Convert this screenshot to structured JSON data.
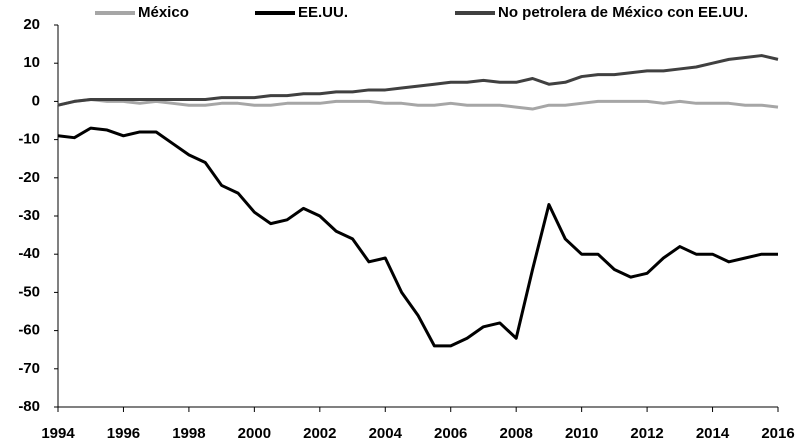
{
  "chart_data": {
    "type": "line",
    "x": [
      1994,
      1994.5,
      1995,
      1995.5,
      1996,
      1996.5,
      1997,
      1997.5,
      1998,
      1998.5,
      1999,
      1999.5,
      2000,
      2000.5,
      2001,
      2001.5,
      2002,
      2002.5,
      2003,
      2003.5,
      2004,
      2004.5,
      2005,
      2005.5,
      2006,
      2006.5,
      2007,
      2007.5,
      2008,
      2008.5,
      2009,
      2009.5,
      2010,
      2010.5,
      2011,
      2011.5,
      2012,
      2012.5,
      2013,
      2013.5,
      2014,
      2014.5,
      2015,
      2015.5,
      2016
    ],
    "series": [
      {
        "name": "México",
        "color": "#a6a6a6",
        "values": [
          -1,
          0,
          0.5,
          0,
          0,
          -0.5,
          0,
          -0.5,
          -1,
          -1,
          -0.5,
          -0.5,
          -1,
          -1,
          -0.5,
          -0.5,
          -0.5,
          0,
          0,
          0,
          -0.5,
          -0.5,
          -1,
          -1,
          -0.5,
          -1,
          -1,
          -1,
          -1.5,
          -2,
          -1,
          -1,
          -0.5,
          0,
          0,
          0,
          0,
          -0.5,
          0,
          -0.5,
          -0.5,
          -0.5,
          -1,
          -1,
          -1.5
        ]
      },
      {
        "name": "EE.UU.",
        "color": "#000000",
        "values": [
          -9,
          -9.5,
          -7,
          -7.5,
          -9,
          -8,
          -8,
          -11,
          -14,
          -16,
          -22,
          -24,
          -29,
          -32,
          -31,
          -28,
          -30,
          -34,
          -36,
          -42,
          -41,
          -50,
          -56,
          -64,
          -64,
          -62,
          -59,
          -58,
          -62,
          -44,
          -27,
          -36,
          -40,
          -40,
          -44,
          -46,
          -45,
          -41,
          -38,
          -40,
          -40,
          -42,
          -41,
          -40,
          -40
        ]
      },
      {
        "name": "No petrolera de México con EE.UU.",
        "color": "#404040",
        "values": [
          -1,
          0,
          0.5,
          0.5,
          0.5,
          0.5,
          0.5,
          0.5,
          0.5,
          0.5,
          1,
          1,
          1,
          1.5,
          1.5,
          2,
          2,
          2.5,
          2.5,
          3,
          3,
          3.5,
          4,
          4.5,
          5,
          5,
          5.5,
          5,
          5,
          6,
          4.5,
          5,
          6.5,
          7,
          7,
          7.5,
          8,
          8,
          8.5,
          9,
          10,
          11,
          11.5,
          12,
          11
        ]
      }
    ],
    "xlim": [
      1994,
      2016
    ],
    "xticks": [
      1994,
      1996,
      1998,
      2000,
      2002,
      2004,
      2006,
      2008,
      2010,
      2012,
      2014,
      2016
    ],
    "ylim": [
      -80,
      20
    ],
    "yticks": [
      -80,
      -70,
      -60,
      -50,
      -40,
      -30,
      -20,
      -10,
      0,
      10,
      20
    ],
    "grid": false,
    "legend": "top"
  }
}
